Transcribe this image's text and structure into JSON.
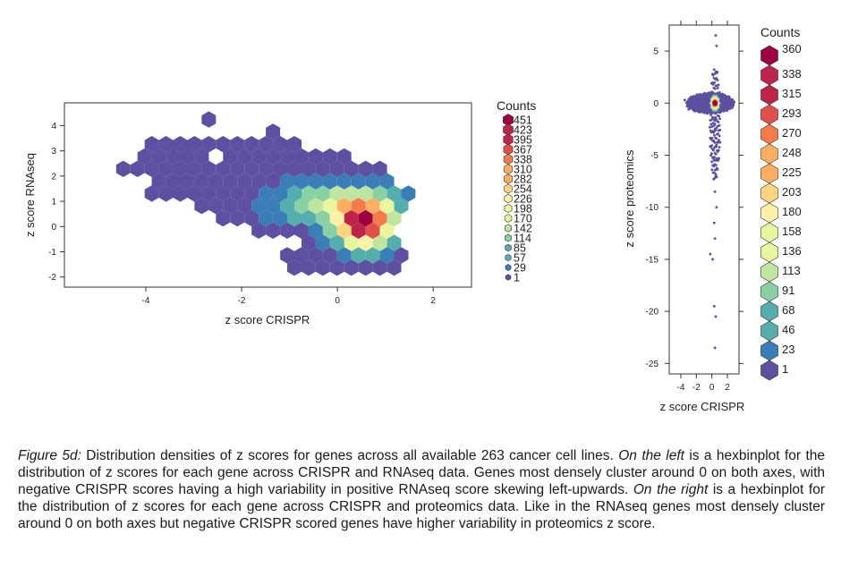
{
  "caption": {
    "label": "Figure 5d:",
    "part1": " Distribution densities of z scores for genes across all available 263 cancer cell lines. ",
    "left_em": "On the left",
    "part2": " is a hexbinplot for the distribution of z scores for each gene across CRISPR and RNAseq data. Genes most densely cluster around 0 on both axes, with negative CRISPR scores having a high variability in positive RNAseq score skewing left-upwards. ",
    "right_em": "On the right",
    "part3": " is a hexbinplot for the distribution of z scores for each gene across CRISPR and proteomics data. Like in the RNAseq genes most densely cluster around 0 on both axes but negative CRISPR scored genes have higher variability in proteomics z score."
  },
  "colors": {
    "scale": [
      "#5e4fa2",
      "#3a7eb8",
      "#54aead",
      "#89d0a4",
      "#bfe5a0",
      "#eaf69e",
      "#fff1a8",
      "#fed481",
      "#fdae61",
      "#f67b4a",
      "#e0504b",
      "#be2449",
      "#9e0142"
    ],
    "empty": "#5e4fa2",
    "axis": "#333333"
  },
  "chart_data": [
    {
      "type": "heatmap",
      "subtype": "hexbin",
      "xlabel": "z score CRISPR",
      "ylabel": "z score RNAseq",
      "xlim": [
        -5.7,
        2.8
      ],
      "ylim": [
        -2.4,
        4.9
      ],
      "xticks": [
        -4,
        -2,
        0,
        2
      ],
      "yticks": [
        -2,
        -1,
        0,
        1,
        2,
        3,
        4
      ],
      "legend": {
        "title": "Counts",
        "placement": "right",
        "values": [
          451,
          423,
          395,
          367,
          338,
          310,
          282,
          254,
          226,
          198,
          170,
          142,
          114,
          85,
          57,
          29,
          1
        ]
      },
      "density": {
        "support": [
          {
            "cx": -0.9,
            "cy": 1.4,
            "rx": 2.6,
            "ry": 1.8,
            "rot": -25
          },
          {
            "cx": -3.2,
            "cy": 2.3,
            "rx": 1.3,
            "ry": 1.3,
            "rot": 0
          },
          {
            "cx": 0.55,
            "cy": -0.3,
            "rx": 0.7,
            "ry": 1.8,
            "rot": 0
          },
          {
            "cx": 0.2,
            "cy": -1.2,
            "rx": 1.4,
            "ry": 0.7,
            "rot": 0
          }
        ],
        "isolated": [
          [
            -5.3,
            3.1
          ],
          [
            -3.8,
            -1.8
          ],
          [
            2.5,
            -0.5
          ],
          [
            -2.6,
            4.3
          ],
          [
            -1.3,
            3.8
          ],
          [
            -3.9,
            2.6
          ]
        ],
        "holes": [
          [
            -2.6,
            2.9
          ],
          [
            -4.5,
            2.7
          ],
          [
            -4.2,
            1.7
          ],
          [
            -3.2,
            0.4
          ]
        ],
        "peaks": [
          {
            "x": 0.55,
            "y": 0.1,
            "sx": 0.55,
            "sy": 0.9,
            "w": 1.0
          },
          {
            "x": -0.1,
            "y": 0.9,
            "sx": 1.2,
            "sy": 0.75,
            "w": 0.35
          }
        ]
      }
    },
    {
      "type": "heatmap",
      "subtype": "hexbin",
      "xlabel": "z score CRISPR",
      "ylabel": "z score proteomics",
      "xlim": [
        -5.5,
        3.5
      ],
      "ylim": [
        -26,
        7.5
      ],
      "xticks": [
        -4,
        -2,
        0,
        2
      ],
      "yticks": [
        5,
        0,
        -5,
        -10,
        -15,
        -20,
        -25
      ],
      "legend": {
        "title": "Counts",
        "placement": "right",
        "values": [
          360,
          338,
          315,
          293,
          270,
          248,
          225,
          203,
          180,
          158,
          136,
          113,
          91,
          68,
          46,
          23,
          1
        ]
      },
      "density": {
        "core": {
          "x": 0.4,
          "y": 0.0,
          "sx": 0.55,
          "sy": 0.55
        },
        "tail": [
          [
            0.4,
            -2.5
          ],
          [
            0.6,
            -4
          ],
          [
            0.3,
            -5.5
          ],
          [
            0.5,
            -7
          ],
          [
            0.4,
            -8.5
          ],
          [
            0.6,
            -10
          ],
          [
            0.3,
            -11.5
          ],
          [
            0.4,
            -13
          ],
          [
            0.7,
            3
          ],
          [
            0.6,
            5.5
          ],
          [
            0.5,
            6.5
          ],
          [
            -0.2,
            -14.5
          ],
          [
            0.1,
            -15
          ],
          [
            0.3,
            -19.5
          ],
          [
            0.5,
            -20.5
          ],
          [
            0.4,
            -23.5
          ]
        ],
        "spread": [
          [
            -3.5,
            0.3
          ],
          [
            -2.5,
            0.5
          ],
          [
            -2,
            -0.4
          ],
          [
            -1.5,
            0.6
          ],
          [
            -3,
            -0.6
          ],
          [
            1.5,
            0.4
          ],
          [
            1.9,
            -0.6
          ]
        ]
      }
    }
  ]
}
